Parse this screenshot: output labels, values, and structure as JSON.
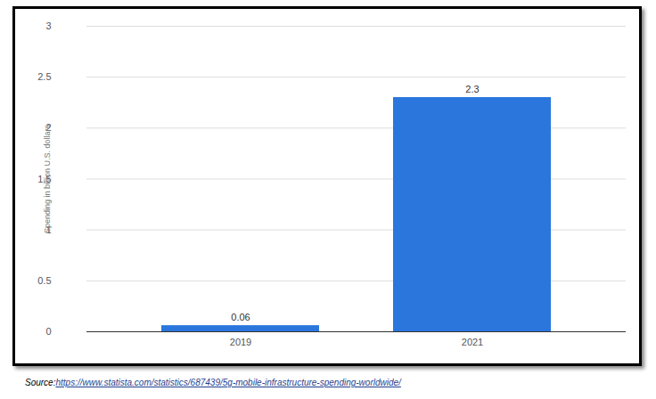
{
  "chart_data": {
    "type": "bar",
    "categories": [
      "2019",
      "2021"
    ],
    "values": [
      0.06,
      2.3
    ],
    "color": "#2a76dd",
    "y_label": "Spending in billion U.S. dollars",
    "ylim": [
      0,
      3
    ],
    "yticks": [
      0,
      0.5,
      1,
      1.5,
      2,
      2.5,
      3
    ],
    "grid": true,
    "data_labels": true,
    "source": "Source:https://www.statista.com/statistics/687439/5g-mobile-infrastructure-spending-worldwide/"
  }
}
